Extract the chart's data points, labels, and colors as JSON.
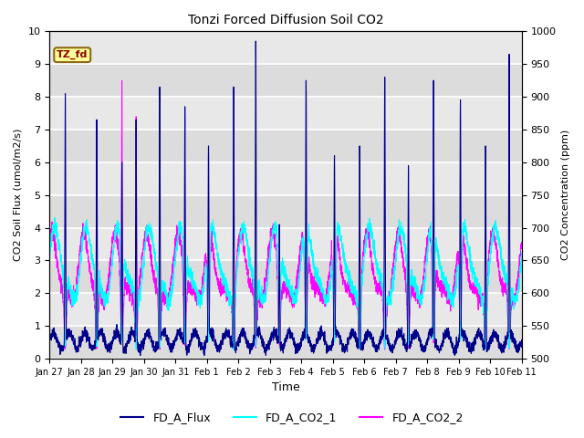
{
  "title": "Tonzi Forced Diffusion Soil CO2",
  "xlabel": "Time",
  "ylabel_left": "CO2 Soil Flux (μmol/m2/s)",
  "ylabel_left_plain": "CO2 Soil Flux (umol/m2/s)",
  "ylabel_right": "CO2 Concentration (ppm)",
  "ylim_left": [
    0.0,
    10.0
  ],
  "ylim_right": [
    500,
    1000
  ],
  "xtick_labels": [
    "Jan 27",
    "Jan 28",
    "Jan 29",
    "Jan 30",
    "Jan 31",
    "Feb 1",
    "Feb 2",
    "Feb 3",
    "Feb 4",
    "Feb 5",
    "Feb 6",
    "Feb 7",
    "Feb 8",
    "Feb 9",
    "Feb 10",
    "Feb 11"
  ],
  "line_colors": {
    "FD_A_Flux": "#00008B",
    "FD_A_CO2_1": "#00FFFF",
    "FD_A_CO2_2": "#FF00FF"
  },
  "legend_labels": [
    "FD_A_Flux",
    "FD_A_CO2_1",
    "FD_A_CO2_2"
  ],
  "tag_text": "TZ_fd",
  "tag_facecolor": "#FFFF99",
  "tag_edgecolor": "#8B6914",
  "tag_textcolor": "#8B0000",
  "background_color": "#E8E8E8",
  "band_color_light": "#EBEBEB",
  "band_color_dark": "#D8D8D8",
  "grid_color": "#FFFFFF",
  "n_points": 3360,
  "days": 15,
  "seed": 42,
  "spike_times": [
    0.5,
    1.5,
    2.3,
    2.75,
    3.5,
    4.3,
    5.05,
    5.85,
    6.55,
    7.3,
    8.15,
    9.05,
    9.85,
    10.65,
    11.4,
    12.2,
    13.05,
    13.85,
    14.6
  ],
  "spike_heights": [
    8.1,
    7.3,
    6.0,
    7.3,
    8.3,
    7.7,
    6.5,
    8.3,
    9.7,
    4.1,
    8.5,
    6.2,
    6.5,
    8.6,
    5.9,
    8.5,
    7.9,
    6.5,
    9.3
  ]
}
